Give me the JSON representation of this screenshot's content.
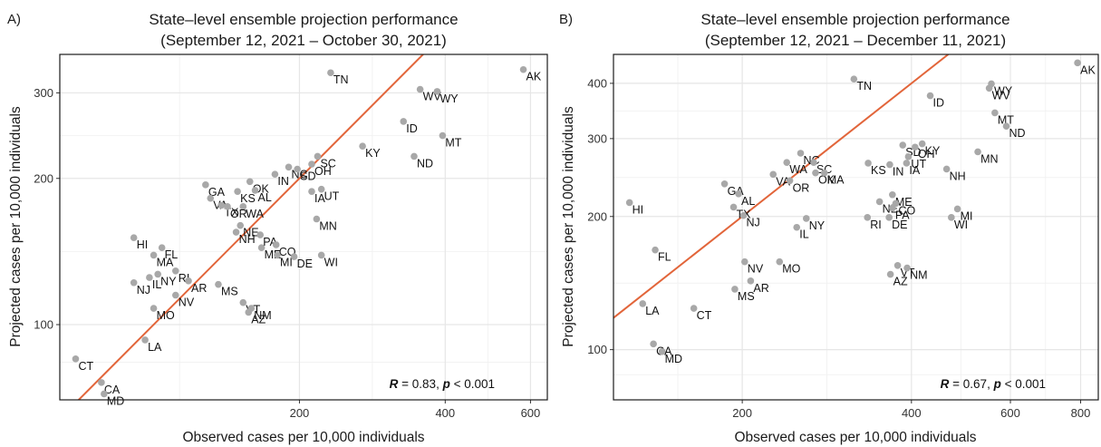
{
  "chart_data": [
    {
      "type": "scatter",
      "panel_label": "A)",
      "title": [
        "State–level ensemble projection performance",
        "(September 12, 2021 – October 30, 2021)"
      ],
      "xlabel": "Observed cases per 10,000 individuals",
      "ylabel": "Projected cases per 10,000 individuals",
      "xscale": "log",
      "yscale": "log",
      "xlim": [
        64,
        650
      ],
      "ylim": [
        70,
        360
      ],
      "xticks": [
        200,
        400,
        600
      ],
      "yticks": [
        100,
        200,
        300
      ],
      "grid": true,
      "reference_line": "y = x",
      "stat": {
        "r_label": "R",
        "r_value": "= 0.83,",
        "p_label": "p",
        "p_value": "< 0.001"
      },
      "points": [
        {
          "label": "AK",
          "x": 580,
          "y": 335
        },
        {
          "label": "TN",
          "x": 232,
          "y": 330
        },
        {
          "label": "WV",
          "x": 355,
          "y": 305
        },
        {
          "label": "WY",
          "x": 385,
          "y": 302
        },
        {
          "label": "ID",
          "x": 328,
          "y": 262
        },
        {
          "label": "MT",
          "x": 395,
          "y": 245
        },
        {
          "label": "KY",
          "x": 270,
          "y": 233
        },
        {
          "label": "ND",
          "x": 345,
          "y": 222
        },
        {
          "label": "SC",
          "x": 218,
          "y": 222
        },
        {
          "label": "OH",
          "x": 212,
          "y": 214
        },
        {
          "label": "NC",
          "x": 190,
          "y": 211
        },
        {
          "label": "SD",
          "x": 198,
          "y": 209
        },
        {
          "label": "IN",
          "x": 178,
          "y": 204
        },
        {
          "label": "OK",
          "x": 158,
          "y": 197
        },
        {
          "label": "GA",
          "x": 128,
          "y": 194
        },
        {
          "label": "KS",
          "x": 149,
          "y": 188
        },
        {
          "label": "AL",
          "x": 162,
          "y": 189
        },
        {
          "label": "UT",
          "x": 222,
          "y": 190
        },
        {
          "label": "IA",
          "x": 212,
          "y": 188
        },
        {
          "label": "VA",
          "x": 131,
          "y": 182
        },
        {
          "label": "TX",
          "x": 138,
          "y": 176
        },
        {
          "label": "WA",
          "x": 153,
          "y": 175
        },
        {
          "label": "OR",
          "x": 142,
          "y": 175
        },
        {
          "label": "MN",
          "x": 217,
          "y": 165
        },
        {
          "label": "NE",
          "x": 151,
          "y": 160
        },
        {
          "label": "NH",
          "x": 148,
          "y": 155
        },
        {
          "label": "PA",
          "x": 166,
          "y": 153
        },
        {
          "label": "HI",
          "x": 91,
          "y": 151
        },
        {
          "label": "FL",
          "x": 104,
          "y": 144
        },
        {
          "label": "MA",
          "x": 100,
          "y": 139
        },
        {
          "label": "CO",
          "x": 179,
          "y": 146
        },
        {
          "label": "ME",
          "x": 167,
          "y": 144
        },
        {
          "label": "MI",
          "x": 180,
          "y": 139
        },
        {
          "label": "DE",
          "x": 195,
          "y": 138
        },
        {
          "label": "WI",
          "x": 222,
          "y": 139
        },
        {
          "label": "RI",
          "x": 111,
          "y": 129
        },
        {
          "label": "NY",
          "x": 102,
          "y": 127
        },
        {
          "label": "IL",
          "x": 98,
          "y": 125
        },
        {
          "label": "AR",
          "x": 118,
          "y": 123
        },
        {
          "label": "NJ",
          "x": 91,
          "y": 122
        },
        {
          "label": "MS",
          "x": 136,
          "y": 121
        },
        {
          "label": "NV",
          "x": 111,
          "y": 115
        },
        {
          "label": "VT",
          "x": 153,
          "y": 111
        },
        {
          "label": "NM",
          "x": 159,
          "y": 108
        },
        {
          "label": "AZ",
          "x": 157,
          "y": 106
        },
        {
          "label": "MO",
          "x": 100,
          "y": 108
        },
        {
          "label": "LA",
          "x": 96,
          "y": 93
        },
        {
          "label": "CT",
          "x": 69,
          "y": 85
        },
        {
          "label": "CA",
          "x": 78,
          "y": 76
        },
        {
          "label": "MD",
          "x": 79,
          "y": 72
        }
      ]
    },
    {
      "type": "scatter",
      "panel_label": "B)",
      "title": [
        "State–level ensemble projection performance",
        "(September 12, 2021 – December 11, 2021)"
      ],
      "xlabel": "Observed cases per 10,000 individuals",
      "ylabel": "Projected cases per 10,000 individuals",
      "xscale": "log",
      "yscale": "log",
      "xlim": [
        118,
        860
      ],
      "ylim": [
        77,
        465
      ],
      "xticks": [
        200,
        400,
        600,
        800
      ],
      "yticks": [
        100,
        200,
        300,
        400
      ],
      "grid": true,
      "reference_line": "y = x",
      "stat": {
        "r_label": "R",
        "r_value": "= 0.67,",
        "p_label": "p",
        "p_value": "< 0.001"
      },
      "points": [
        {
          "label": "AK",
          "x": 790,
          "y": 445
        },
        {
          "label": "TN",
          "x": 316,
          "y": 409
        },
        {
          "label": "WY",
          "x": 555,
          "y": 399
        },
        {
          "label": "WV",
          "x": 550,
          "y": 390
        },
        {
          "label": "ID",
          "x": 432,
          "y": 375
        },
        {
          "label": "MT",
          "x": 563,
          "y": 343
        },
        {
          "label": "ND",
          "x": 590,
          "y": 320
        },
        {
          "label": "KY",
          "x": 418,
          "y": 292
        },
        {
          "label": "SD",
          "x": 386,
          "y": 290
        },
        {
          "label": "OH",
          "x": 406,
          "y": 287
        },
        {
          "label": "MN",
          "x": 525,
          "y": 280
        },
        {
          "label": "NC",
          "x": 254,
          "y": 278
        },
        {
          "label": "UT",
          "x": 395,
          "y": 273
        },
        {
          "label": "WA",
          "x": 240,
          "y": 265
        },
        {
          "label": "SC",
          "x": 268,
          "y": 265
        },
        {
          "label": "KS",
          "x": 335,
          "y": 264
        },
        {
          "label": "IN",
          "x": 366,
          "y": 262
        },
        {
          "label": "IA",
          "x": 392,
          "y": 264
        },
        {
          "label": "NH",
          "x": 462,
          "y": 256
        },
        {
          "label": "OK",
          "x": 270,
          "y": 251
        },
        {
          "label": "MA",
          "x": 280,
          "y": 251
        },
        {
          "label": "VA",
          "x": 227,
          "y": 249
        },
        {
          "label": "OR",
          "x": 243,
          "y": 241
        },
        {
          "label": "GA",
          "x": 186,
          "y": 237
        },
        {
          "label": "ME",
          "x": 370,
          "y": 224
        },
        {
          "label": "AL",
          "x": 197,
          "y": 225
        },
        {
          "label": "NE",
          "x": 351,
          "y": 216
        },
        {
          "label": "CO",
          "x": 375,
          "y": 214
        },
        {
          "label": "HI",
          "x": 126,
          "y": 215
        },
        {
          "label": "TX",
          "x": 193,
          "y": 210
        },
        {
          "label": "PA",
          "x": 370,
          "y": 209
        },
        {
          "label": "MI",
          "x": 483,
          "y": 208
        },
        {
          "label": "NJ",
          "x": 201,
          "y": 201
        },
        {
          "label": "RI",
          "x": 334,
          "y": 199
        },
        {
          "label": "DE",
          "x": 365,
          "y": 199
        },
        {
          "label": "NY",
          "x": 260,
          "y": 198
        },
        {
          "label": "WI",
          "x": 471,
          "y": 199
        },
        {
          "label": "IL",
          "x": 250,
          "y": 189
        },
        {
          "label": "FL",
          "x": 140,
          "y": 168
        },
        {
          "label": "MO",
          "x": 233,
          "y": 158
        },
        {
          "label": "NV",
          "x": 202,
          "y": 158
        },
        {
          "label": "VT",
          "x": 378,
          "y": 155
        },
        {
          "label": "NM",
          "x": 393,
          "y": 153
        },
        {
          "label": "AZ",
          "x": 367,
          "y": 148
        },
        {
          "label": "AR",
          "x": 207,
          "y": 143
        },
        {
          "label": "MS",
          "x": 194,
          "y": 137
        },
        {
          "label": "LA",
          "x": 133,
          "y": 127
        },
        {
          "label": "CT",
          "x": 164,
          "y": 124
        },
        {
          "label": "CA",
          "x": 139,
          "y": 103
        },
        {
          "label": "MD",
          "x": 144,
          "y": 99
        }
      ]
    }
  ],
  "colors": {
    "point": "#a8a8a8",
    "reference_line": "#e2653a",
    "grid_major": "#e6e6e6",
    "grid_minor": "#f2f2f2",
    "frame": "#1a1a1a"
  }
}
